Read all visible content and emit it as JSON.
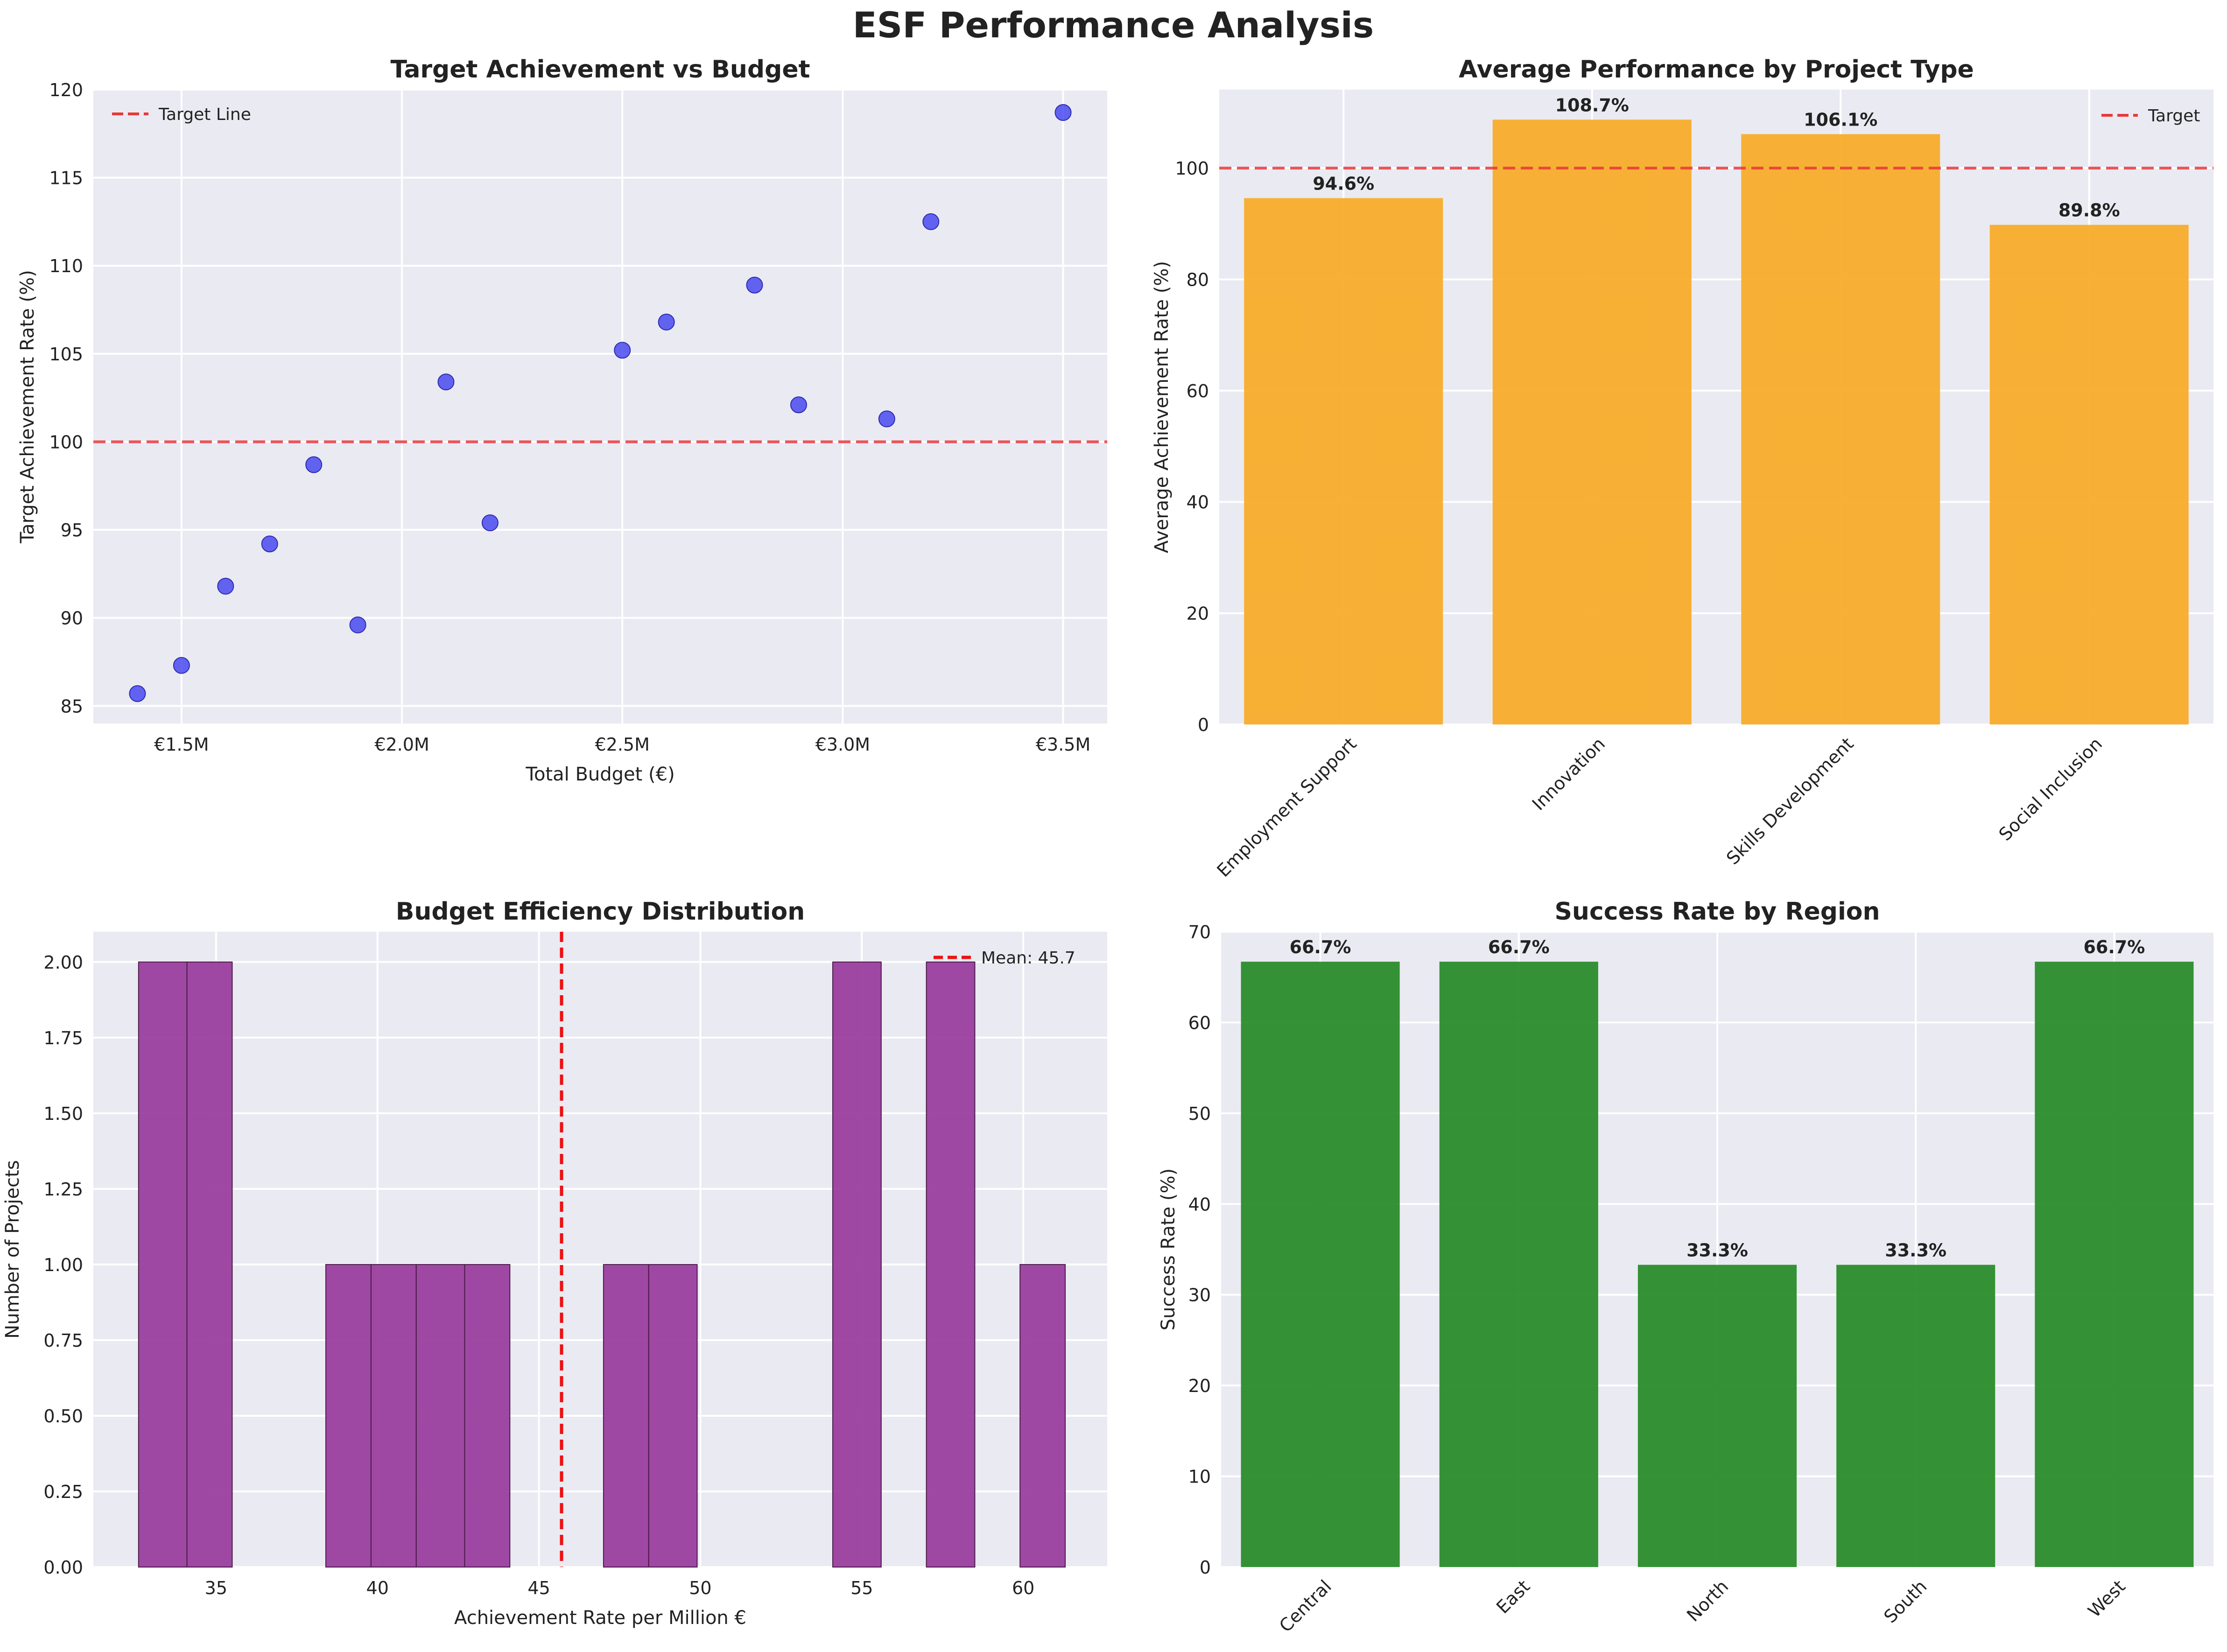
{
  "figure": {
    "title": "ESF Performance Analysis"
  },
  "chart_data": [
    {
      "type": "scatter",
      "title": "Target Achievement vs Budget",
      "xlabel": "Total Budget (€)",
      "ylabel": "Target Achievement Rate (%)",
      "xlim": [
        1.3,
        3.6
      ],
      "ylim": [
        84,
        120
      ],
      "xticks": [
        1.5,
        2.0,
        2.5,
        3.0,
        3.5
      ],
      "xtick_labels": [
        "€1.5M",
        "€2.0M",
        "€2.5M",
        "€3.0M",
        "€3.5M"
      ],
      "yticks": [
        85,
        90,
        95,
        100,
        105,
        110,
        115,
        120
      ],
      "points": [
        {
          "x": 1.4,
          "y": 85.7
        },
        {
          "x": 1.5,
          "y": 87.3
        },
        {
          "x": 1.6,
          "y": 91.8
        },
        {
          "x": 1.7,
          "y": 94.2
        },
        {
          "x": 1.8,
          "y": 98.7
        },
        {
          "x": 1.9,
          "y": 89.6
        },
        {
          "x": 2.1,
          "y": 103.4
        },
        {
          "x": 2.2,
          "y": 95.4
        },
        {
          "x": 2.5,
          "y": 105.2
        },
        {
          "x": 2.6,
          "y": 106.8
        },
        {
          "x": 2.8,
          "y": 108.9
        },
        {
          "x": 2.9,
          "y": 102.1
        },
        {
          "x": 3.1,
          "y": 101.3
        },
        {
          "x": 3.2,
          "y": 112.5
        },
        {
          "x": 3.5,
          "y": 118.7
        }
      ],
      "reference_line": {
        "y": 100,
        "label": "Target Line"
      },
      "legend": "top-left",
      "grid": true,
      "colors": {
        "points": "#4040f0",
        "line": "#e8383a",
        "background": "#eaeaf2"
      }
    },
    {
      "type": "bar",
      "title": "Average Performance by Project Type",
      "xlabel": "",
      "ylabel": "Average Achievement Rate (%)",
      "ylim": [
        0,
        114.1
      ],
      "yticks": [
        0,
        20,
        40,
        60,
        80,
        100
      ],
      "categories": [
        "Employment Support",
        "Innovation",
        "Skills Development",
        "Social Inclusion"
      ],
      "values": [
        94.6,
        108.7,
        106.1,
        89.8
      ],
      "value_labels": [
        "94.6%",
        "108.7%",
        "106.1%",
        "89.8%"
      ],
      "reference_line": {
        "y": 100,
        "label": "Target"
      },
      "legend": "top-right",
      "grid": true,
      "colors": {
        "bars": "#f8ad2a",
        "line": "#e8383a",
        "background": "#eaeaf2"
      }
    },
    {
      "type": "bar",
      "subtype": "histogram",
      "title": "Budget Efficiency Distribution",
      "xlabel": "Achievement Rate per Million €",
      "ylabel": "Number of Projects",
      "xlim": [
        31.2,
        62.6
      ],
      "ylim": [
        0,
        2.1
      ],
      "xticks": [
        35,
        40,
        45,
        50,
        55,
        60
      ],
      "yticks": [
        "0.00",
        "0.25",
        "0.50",
        "0.75",
        "1.00",
        "1.25",
        "1.50",
        "1.75",
        "2.00"
      ],
      "bins": [
        {
          "start": 32.6,
          "end": 34.1,
          "count": 2
        },
        {
          "start": 34.1,
          "end": 35.5,
          "count": 2
        },
        {
          "start": 38.4,
          "end": 39.8,
          "count": 1
        },
        {
          "start": 39.8,
          "end": 41.2,
          "count": 1
        },
        {
          "start": 41.2,
          "end": 42.7,
          "count": 1
        },
        {
          "start": 42.7,
          "end": 44.1,
          "count": 1
        },
        {
          "start": 47.0,
          "end": 48.4,
          "count": 1
        },
        {
          "start": 48.4,
          "end": 49.9,
          "count": 1
        },
        {
          "start": 54.1,
          "end": 55.6,
          "count": 2
        },
        {
          "start": 57.0,
          "end": 58.5,
          "count": 2
        },
        {
          "start": 59.9,
          "end": 61.3,
          "count": 1
        }
      ],
      "mean_line": {
        "x": 45.7,
        "label": "Mean: 45.7"
      },
      "legend": "top-right",
      "grid": true,
      "colors": {
        "bars": "#9b3f9e",
        "line": "#ee1010",
        "background": "#eaeaf2"
      }
    },
    {
      "type": "bar",
      "title": "Success Rate by Region",
      "xlabel": "",
      "ylabel": "Success Rate (%)",
      "ylim": [
        0,
        70
      ],
      "yticks": [
        0,
        10,
        20,
        30,
        40,
        50,
        60,
        70
      ],
      "categories": [
        "Central",
        "East",
        "North",
        "South",
        "West"
      ],
      "values": [
        66.7,
        66.7,
        33.3,
        33.3,
        66.7
      ],
      "value_labels": [
        "66.7%",
        "66.7%",
        "33.3%",
        "33.3%",
        "66.7%"
      ],
      "grid": true,
      "colors": {
        "bars": "#2b8c2b",
        "background": "#eaeaf2"
      }
    }
  ]
}
